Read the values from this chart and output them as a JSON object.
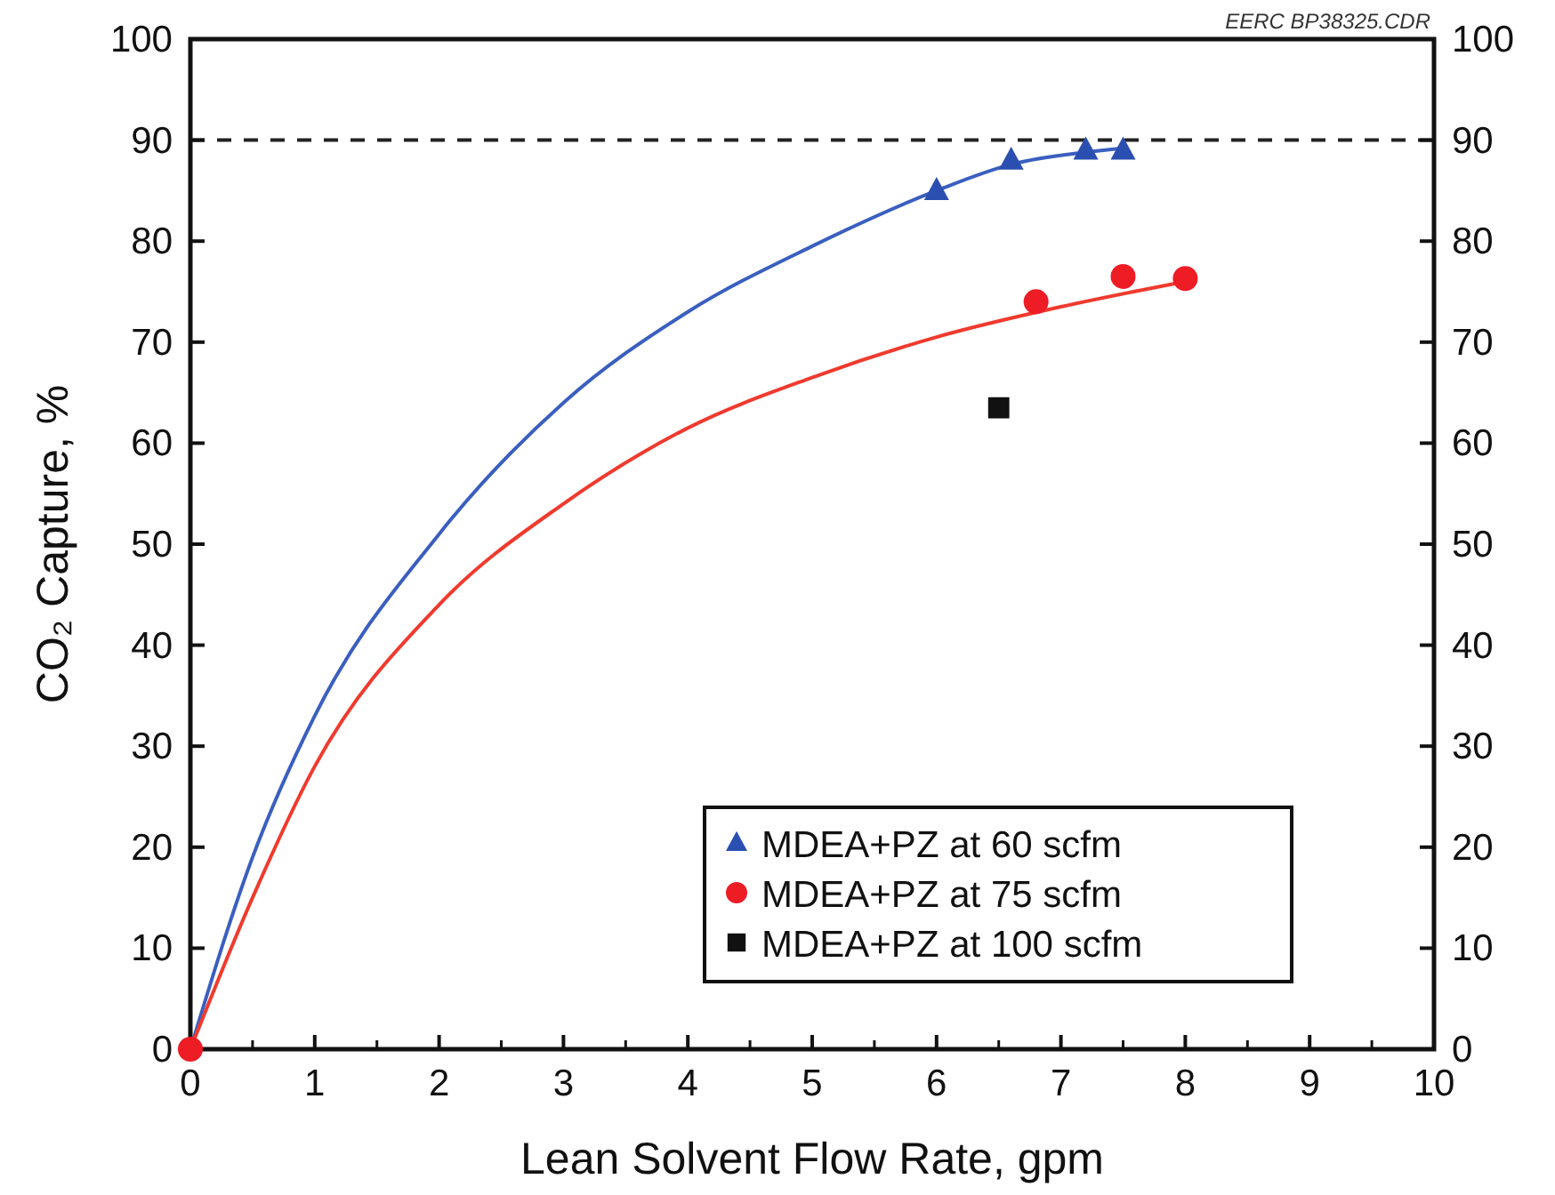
{
  "chart_data": {
    "type": "scatter",
    "xlabel": "Lean Solvent Flow Rate, gpm",
    "ylabel": "CO₂ Capture, %",
    "annotations": [
      "EERC BP38325.CDR"
    ],
    "xlim": [
      0,
      10
    ],
    "xticks": [
      0,
      1,
      2,
      3,
      4,
      5,
      6,
      7,
      8,
      9,
      10
    ],
    "ylim": [
      0,
      100
    ],
    "yticks": [
      0,
      10,
      20,
      30,
      40,
      50,
      60,
      70,
      80,
      90,
      100
    ],
    "y2lim": [
      0,
      100
    ],
    "y2ticks": [
      0,
      10,
      20,
      30,
      40,
      50,
      60,
      70,
      80,
      90,
      100
    ],
    "legend": "bottom right",
    "grid": false,
    "ref_lines": [
      {
        "axis": "y",
        "value": 90,
        "color": "#222222",
        "line_style": "dashed"
      }
    ],
    "series": [
      {
        "type": "line",
        "color": "#3a5fbf",
        "marker": "none",
        "x": [
          0,
          0.5,
          1,
          2,
          3,
          4,
          5,
          6,
          6.6,
          7.2,
          7.5
        ],
        "values": [
          0,
          19,
          33,
          51,
          64,
          73,
          79.5,
          85,
          87.6,
          88.8,
          89.2
        ]
      },
      {
        "type": "line",
        "color": "#f03a2e",
        "marker": "none",
        "x": [
          0,
          0.5,
          1,
          2,
          3,
          4,
          5,
          6,
          7,
          8
        ],
        "values": [
          0,
          15,
          28,
          44,
          54,
          61.5,
          66.5,
          70.5,
          73.5,
          76
        ]
      },
      {
        "name": "MDEA+PZ at 60 scfm",
        "color": "#2b4fb0",
        "marker": "triangle",
        "x": [
          6,
          6.6,
          7.2,
          7.5
        ],
        "values": [
          85,
          88,
          89,
          89
        ]
      },
      {
        "name": "MDEA+PZ at 75 scfm",
        "color": "#ee1c25",
        "marker": "circle",
        "x": [
          0,
          6.8,
          7.5,
          8
        ],
        "values": [
          0,
          74,
          76.5,
          76.3
        ]
      },
      {
        "name": "MDEA+PZ at 100 scfm",
        "color": "#111111",
        "marker": "square",
        "x": [
          6.5
        ],
        "values": [
          63.5
        ]
      }
    ]
  }
}
